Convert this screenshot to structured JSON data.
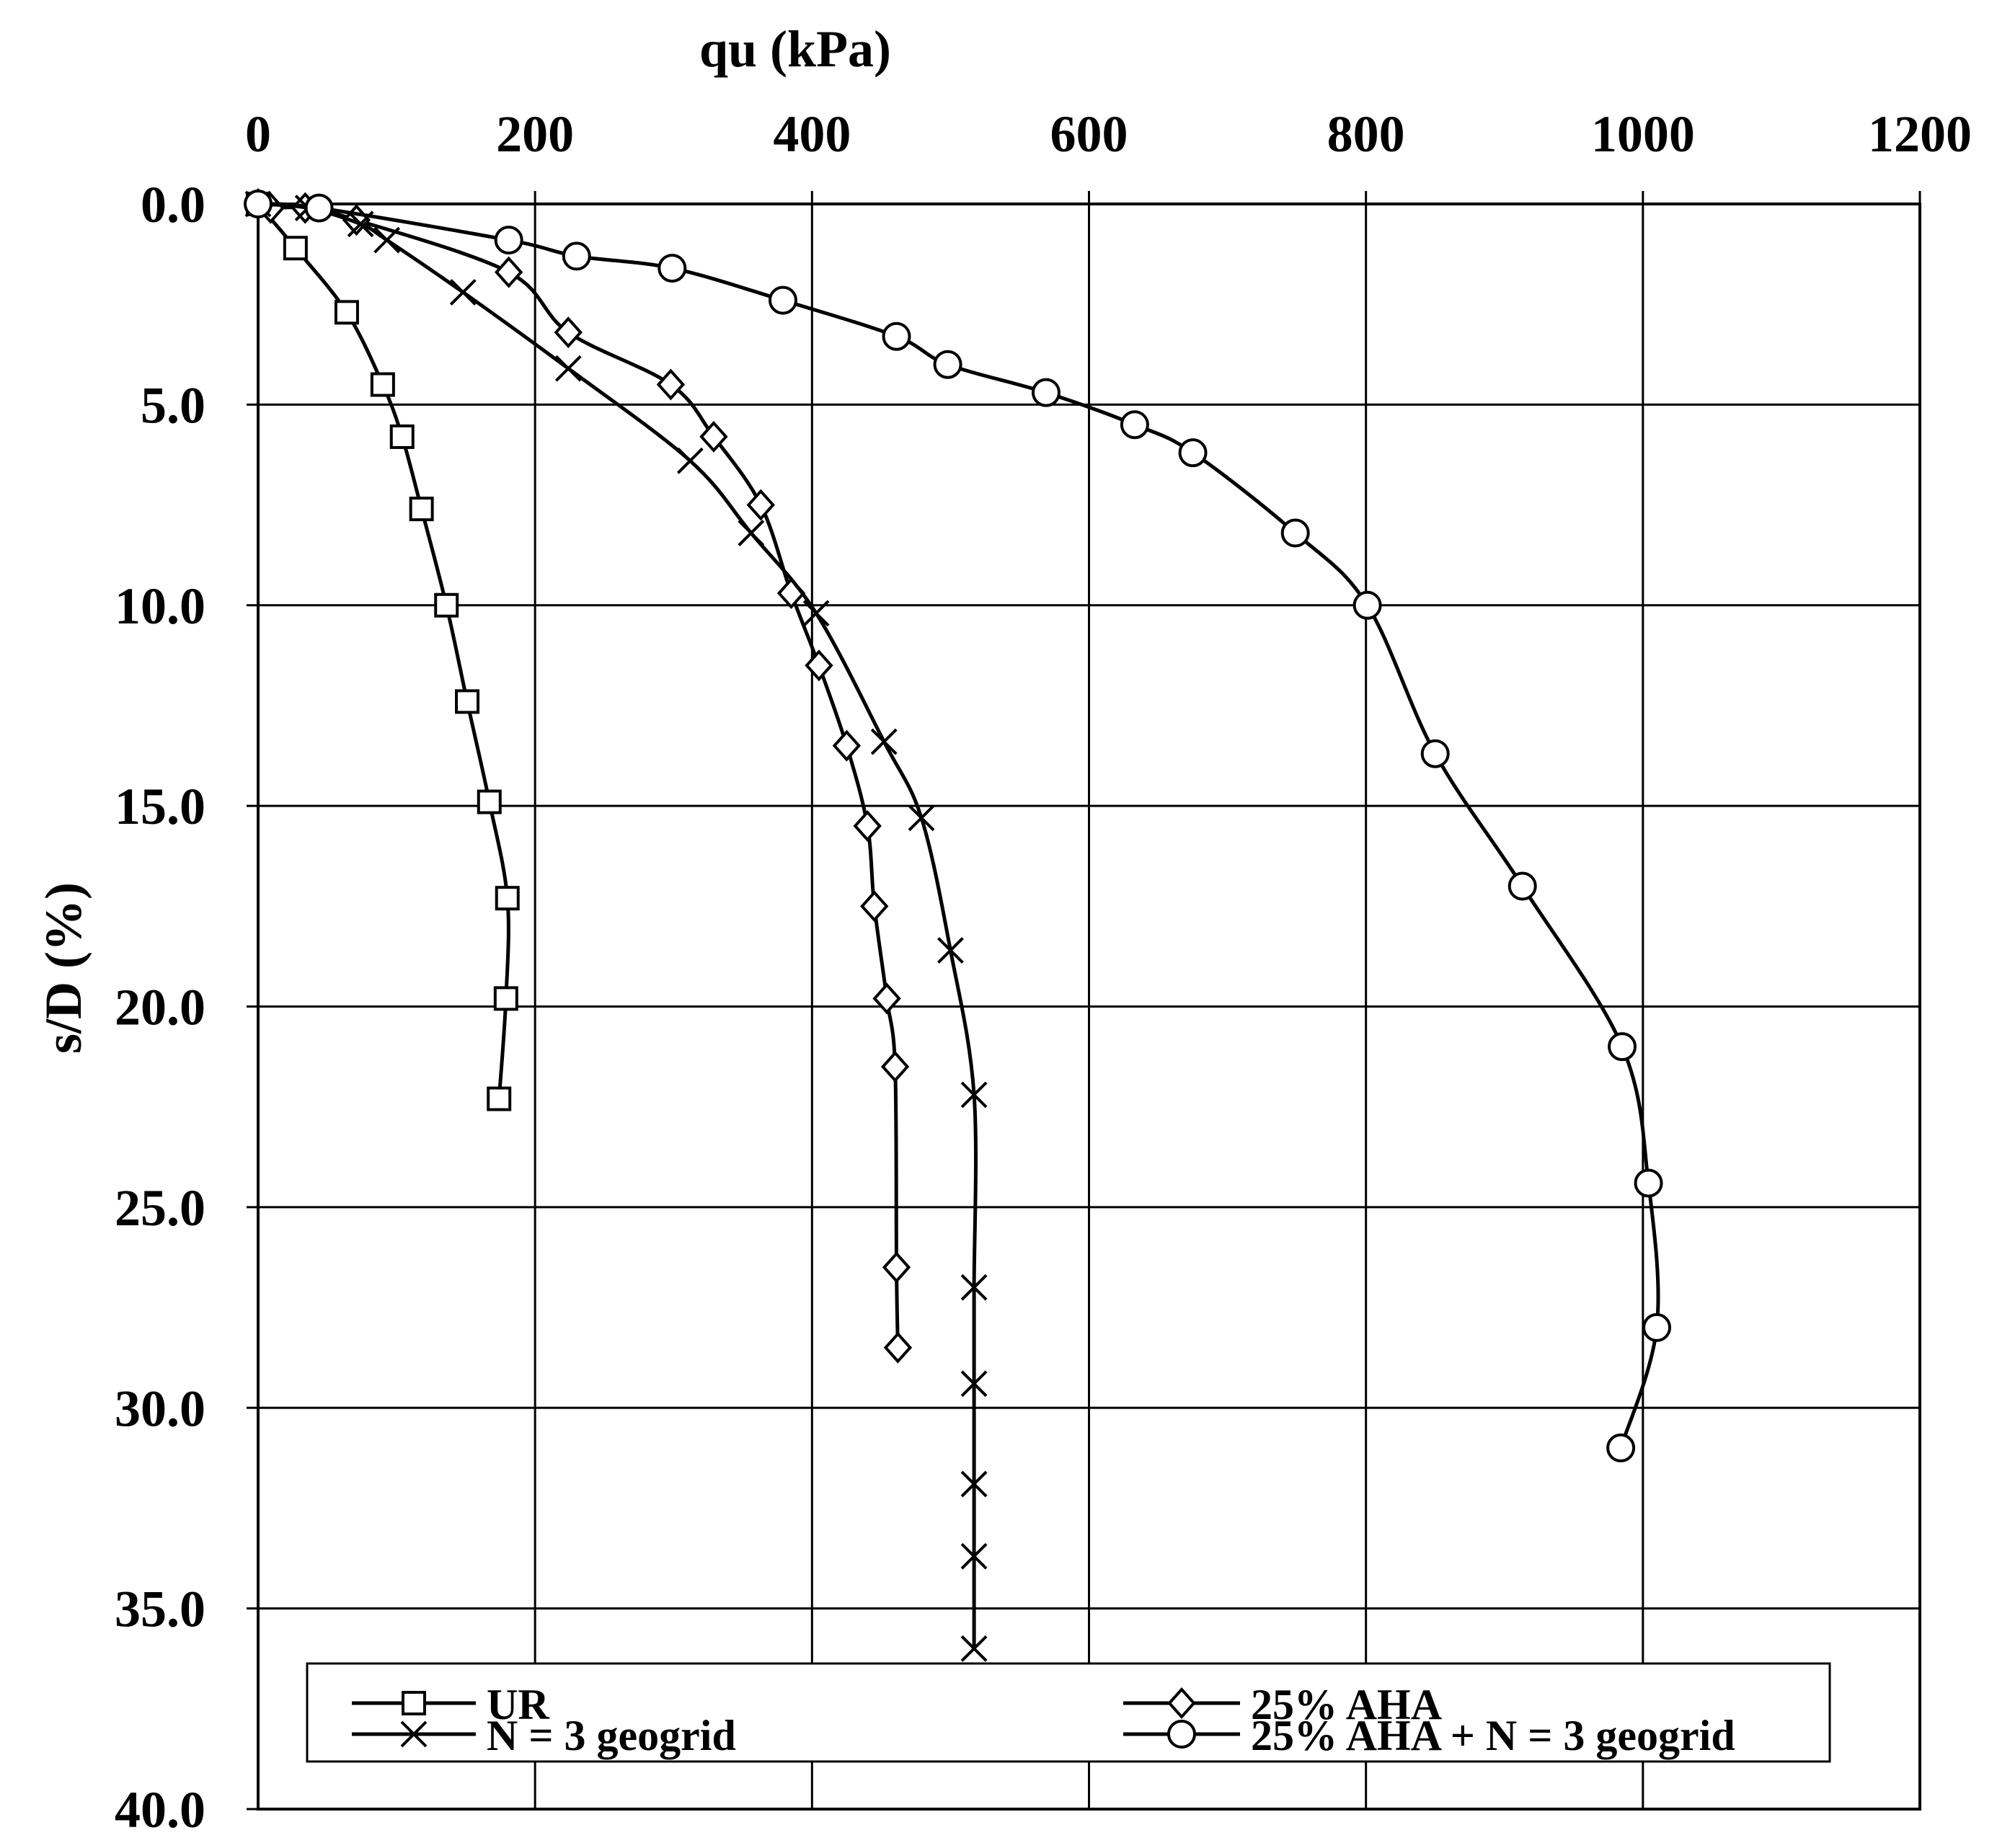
{
  "chart_data": {
    "type": "scatter",
    "xlabel": "qu (kPa)",
    "ylabel": "s/D (%)",
    "xlim": [
      0,
      1200
    ],
    "ylim": [
      0,
      40
    ],
    "y_inverted": true,
    "x_axis_position": "top",
    "grid": true,
    "x_ticks": [
      "0",
      "200",
      "400",
      "600",
      "800",
      "1000",
      "1200"
    ],
    "x_tick_values": [
      0,
      200,
      400,
      600,
      800,
      1000,
      1200
    ],
    "y_ticks": [
      "0.0",
      "5.0",
      "10.0",
      "15.0",
      "20.0",
      "25.0",
      "30.0",
      "35.0",
      "40.0"
    ],
    "y_tick_values": [
      0,
      5,
      10,
      15,
      20,
      25,
      30,
      35,
      40
    ],
    "legend": {
      "placement": "bottom",
      "columns": 2
    },
    "series": [
      {
        "name": "UR",
        "marker": "square",
        "x": [
          0,
          27,
          64,
          90,
          104,
          118,
          136,
          151,
          167,
          180,
          179,
          174
        ],
        "y": [
          0,
          1.1,
          2.7,
          4.5,
          5.8,
          7.6,
          10.0,
          12.4,
          14.9,
          17.3,
          19.8,
          22.3
        ]
      },
      {
        "name": "25% AHA",
        "marker": "diamond",
        "x": [
          0,
          9,
          34,
          71,
          181,
          224,
          298,
          329,
          363,
          385,
          405,
          425,
          440,
          445,
          454,
          460,
          461,
          462
        ],
        "y": [
          0,
          0.1,
          0.1,
          0.4,
          1.7,
          3.2,
          4.5,
          5.8,
          7.5,
          9.7,
          11.5,
          13.5,
          15.5,
          17.5,
          19.8,
          21.5,
          26.5,
          28.5
        ]
      },
      {
        "name": "N = 3 geogrid",
        "marker": "x",
        "x": [
          0,
          36,
          74,
          93,
          148,
          224,
          312,
          356,
          403,
          452,
          479,
          500,
          517,
          517,
          517,
          517,
          517,
          517
        ],
        "y": [
          0,
          0.1,
          0.5,
          0.9,
          2.2,
          4.1,
          6.4,
          8.2,
          10.2,
          13.4,
          15.3,
          18.6,
          22.2,
          27.0,
          29.4,
          31.9,
          33.7,
          36.0
        ]
      },
      {
        "name": "25% AHA + N = 3 geogrid",
        "marker": "circle",
        "x": [
          0,
          44,
          181,
          230,
          299,
          379,
          461,
          498,
          569,
          633,
          675,
          749,
          801,
          850,
          913,
          985,
          1004,
          1010,
          984
        ],
        "y": [
          0,
          0.1,
          0.9,
          1.3,
          1.6,
          2.4,
          3.3,
          4.0,
          4.7,
          5.5,
          6.2,
          8.2,
          10.0,
          13.7,
          17.0,
          21.0,
          24.4,
          28.0,
          31.0
        ]
      }
    ]
  }
}
